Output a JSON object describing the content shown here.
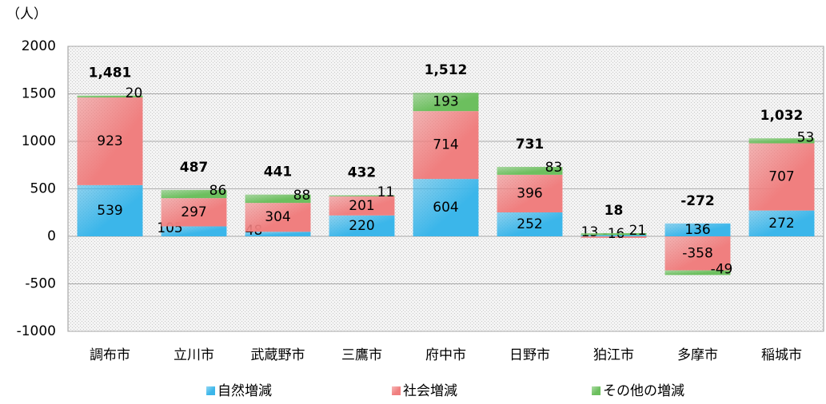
{
  "chart_data": {
    "type": "stacked_bar",
    "y_unit_label": "（人）",
    "categories": [
      "調布市",
      "立川市",
      "武蔵野市",
      "三鷹市",
      "府中市",
      "日野市",
      "狛江市",
      "多摩市",
      "稲城市"
    ],
    "series": [
      {
        "name": "自然増減",
        "color": "#3bb6ea",
        "values": [
          539,
          105,
          48,
          220,
          604,
          252,
          13,
          136,
          272
        ]
      },
      {
        "name": "社会増減",
        "color": "#f07f7f",
        "values": [
          923,
          297,
          304,
          201,
          714,
          396,
          -16,
          -358,
          707
        ]
      },
      {
        "name": "その他の増減",
        "color": "#6cbf5e",
        "values": [
          20,
          86,
          88,
          11,
          193,
          83,
          21,
          -49,
          53
        ]
      }
    ],
    "totals": [
      1481,
      487,
      441,
      432,
      1512,
      731,
      18,
      -272,
      1032
    ],
    "total_labels": [
      "1,481",
      "487",
      "441",
      "432",
      "1,512",
      "731",
      "18",
      "-272",
      "1,032"
    ],
    "ylim": [
      -1000,
      2000
    ],
    "yticks": [
      -1000,
      -500,
      0,
      500,
      1000,
      1500,
      2000
    ],
    "grid": true,
    "legend": "bottom"
  }
}
